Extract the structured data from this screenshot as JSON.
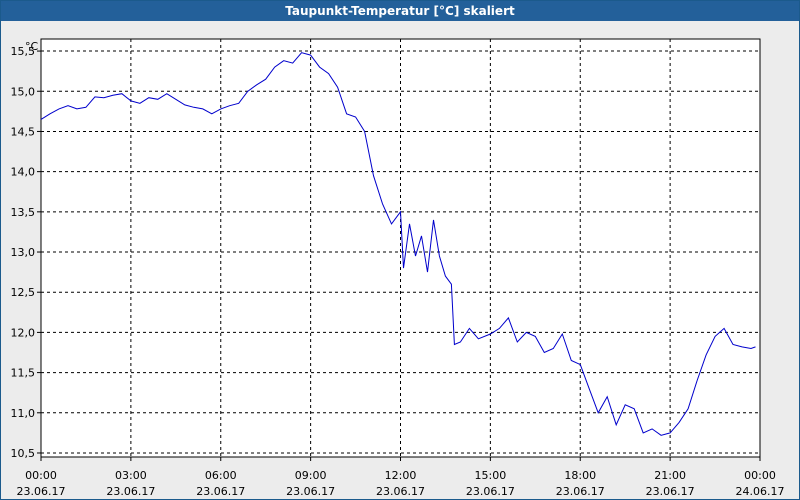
{
  "window": {
    "title": "Taupunkt-Temperatur [°C] skaliert"
  },
  "colors": {
    "line": "#0000cc",
    "title_bar": "#23609a",
    "plot_bg": "#ffffff",
    "grid": "#000000"
  },
  "chart_data": {
    "type": "line",
    "title": "Taupunkt-Temperatur [°C] skaliert",
    "ylabel": "°C",
    "xlabel": "",
    "ylim": [
      10.45,
      15.65
    ],
    "xlim": [
      0,
      24
    ],
    "grid": true,
    "y_ticks": [
      "10,5",
      "11,0",
      "11,5",
      "12,0",
      "12,5",
      "13,0",
      "13,5",
      "14,0",
      "14,5",
      "15,0",
      "15,5"
    ],
    "x_ticks": [
      {
        "time": "00:00",
        "date": "23.06.17"
      },
      {
        "time": "03:00",
        "date": "23.06.17"
      },
      {
        "time": "06:00",
        "date": "23.06.17"
      },
      {
        "time": "09:00",
        "date": "23.06.17"
      },
      {
        "time": "12:00",
        "date": "23.06.17"
      },
      {
        "time": "15:00",
        "date": "23.06.17"
      },
      {
        "time": "18:00",
        "date": "23.06.17"
      },
      {
        "time": "21:00",
        "date": "23.06.17"
      },
      {
        "time": "00:00",
        "date": "24.06.17"
      }
    ],
    "series": [
      {
        "x": [
          0,
          0.3,
          0.6,
          0.9,
          1.2,
          1.5,
          1.8,
          2.1,
          2.4,
          2.7,
          3.0,
          3.3,
          3.6,
          3.9,
          4.2,
          4.5,
          4.8,
          5.1,
          5.4,
          5.7,
          6.0,
          6.3,
          6.6,
          6.9,
          7.2,
          7.5,
          7.8,
          8.1,
          8.4,
          8.7,
          9.0,
          9.3,
          9.6,
          9.9,
          10.2,
          10.5,
          10.8,
          11.1,
          11.4,
          11.7,
          12.0,
          12.1,
          12.3,
          12.5,
          12.7,
          12.9,
          13.1,
          13.3,
          13.5,
          13.7,
          13.8,
          14.0,
          14.3,
          14.6,
          15.0,
          15.3,
          15.6,
          15.9,
          16.2,
          16.5,
          16.8,
          17.1,
          17.4,
          17.7,
          18.0,
          18.3,
          18.6,
          18.9,
          19.2,
          19.5,
          19.8,
          20.1,
          20.4,
          20.7,
          21.0,
          21.3,
          21.6,
          21.9,
          22.2,
          22.5,
          22.8,
          23.1,
          23.4,
          23.7,
          23.85
        ],
        "y": [
          14.65,
          14.72,
          14.78,
          14.82,
          14.78,
          14.8,
          14.93,
          14.92,
          14.95,
          14.97,
          14.88,
          14.85,
          14.92,
          14.9,
          14.97,
          14.9,
          14.83,
          14.8,
          14.78,
          14.72,
          14.78,
          14.82,
          14.85,
          15.0,
          15.08,
          15.15,
          15.3,
          15.38,
          15.35,
          15.48,
          15.45,
          15.3,
          15.22,
          15.05,
          14.72,
          14.68,
          14.5,
          13.95,
          13.6,
          13.35,
          13.5,
          12.8,
          13.35,
          12.95,
          13.2,
          12.75,
          13.4,
          12.95,
          12.7,
          12.6,
          11.85,
          11.88,
          12.05,
          11.92,
          11.98,
          12.05,
          12.18,
          11.88,
          12.0,
          11.95,
          11.75,
          11.8,
          11.98,
          11.65,
          11.6,
          11.3,
          11.0,
          11.2,
          10.85,
          11.1,
          11.05,
          10.75,
          10.8,
          10.72,
          10.75,
          10.88,
          11.05,
          11.4,
          11.72,
          11.95,
          12.05,
          11.85,
          11.82,
          11.8,
          11.82
        ]
      }
    ]
  }
}
